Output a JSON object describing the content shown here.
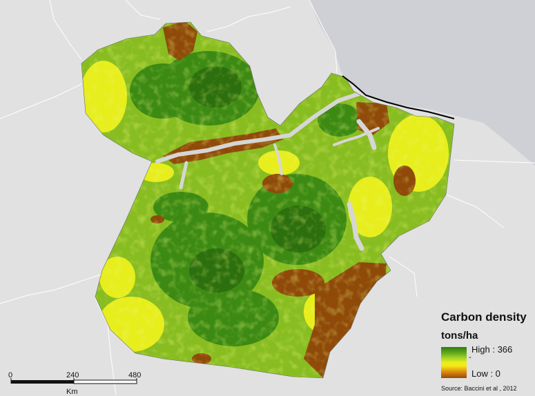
{
  "legend": {
    "title": "Carbon density",
    "units": "tons/ha",
    "high_label": "High : 366",
    "low_label": "Low : 0",
    "ramp_colors": [
      "#2e7d12",
      "#5fa61a",
      "#9fcf28",
      "#e8f01a",
      "#f7e316",
      "#d98a12",
      "#9a4808"
    ]
  },
  "scalebar": {
    "ticks": [
      "0",
      "240",
      "480"
    ],
    "unit": "Km"
  },
  "source": "Source: Baccini et al , 2012",
  "colors": {
    "background": "#e1e1e1",
    "ocean": "#cfcfd6",
    "high_carbon": "#2e7d12",
    "medium_carbon": "#8cc020",
    "low_carbon": "#8f4a0a",
    "river": "#d6d6d6"
  }
}
